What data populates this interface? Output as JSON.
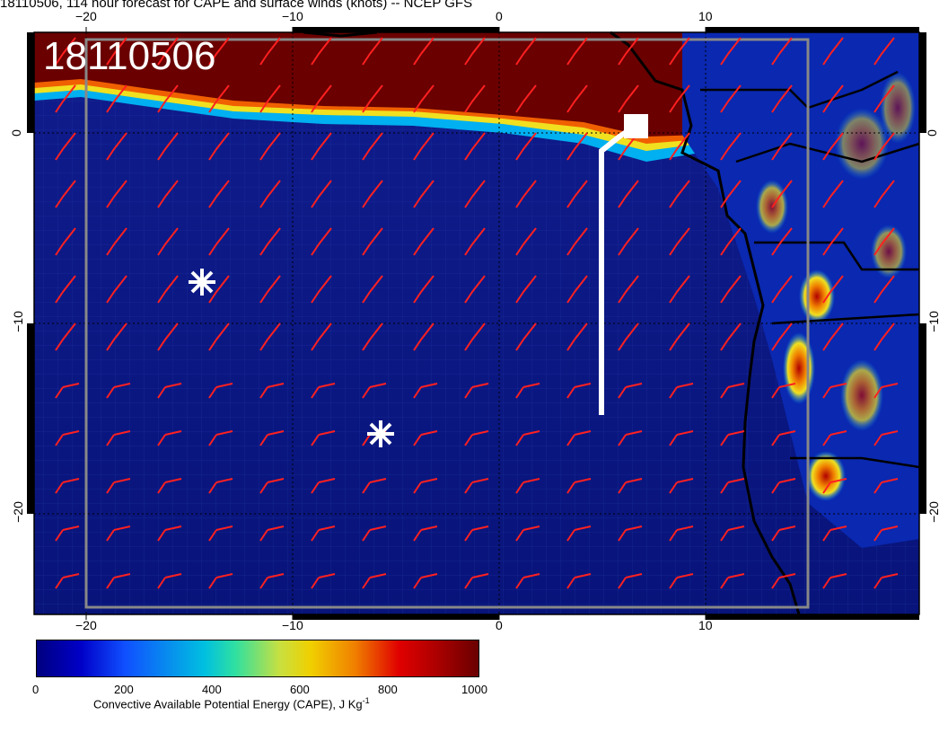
{
  "header": {
    "title": "18110506, 114 hour forecast for CAPE and surface winds (knots) -- NCEP GFS"
  },
  "stamp": "18110506",
  "axes": {
    "top_ticks": [
      "−20",
      "−10",
      "0",
      "10"
    ],
    "bottom_ticks": [
      "−20",
      "−10",
      "0",
      "10"
    ],
    "left_ticks": [
      "0",
      "−10",
      "−20"
    ],
    "right_ticks": [
      "0",
      "−10",
      "−20"
    ]
  },
  "colorbar": {
    "ticks": [
      "0",
      "200",
      "400",
      "600",
      "800",
      "1000"
    ],
    "label": "Convective Available Potential Energy (CAPE), J Kg",
    "label_sup": "-1"
  },
  "colors": {
    "wind_barb": "#ff2020",
    "ocean_low": "#0a1a9a",
    "high_cape": "#6a0000",
    "coast": "#000000",
    "track": "#ffffff"
  },
  "markers": [
    {
      "name": "asterisk-1"
    },
    {
      "name": "asterisk-2"
    },
    {
      "name": "square"
    }
  ]
}
